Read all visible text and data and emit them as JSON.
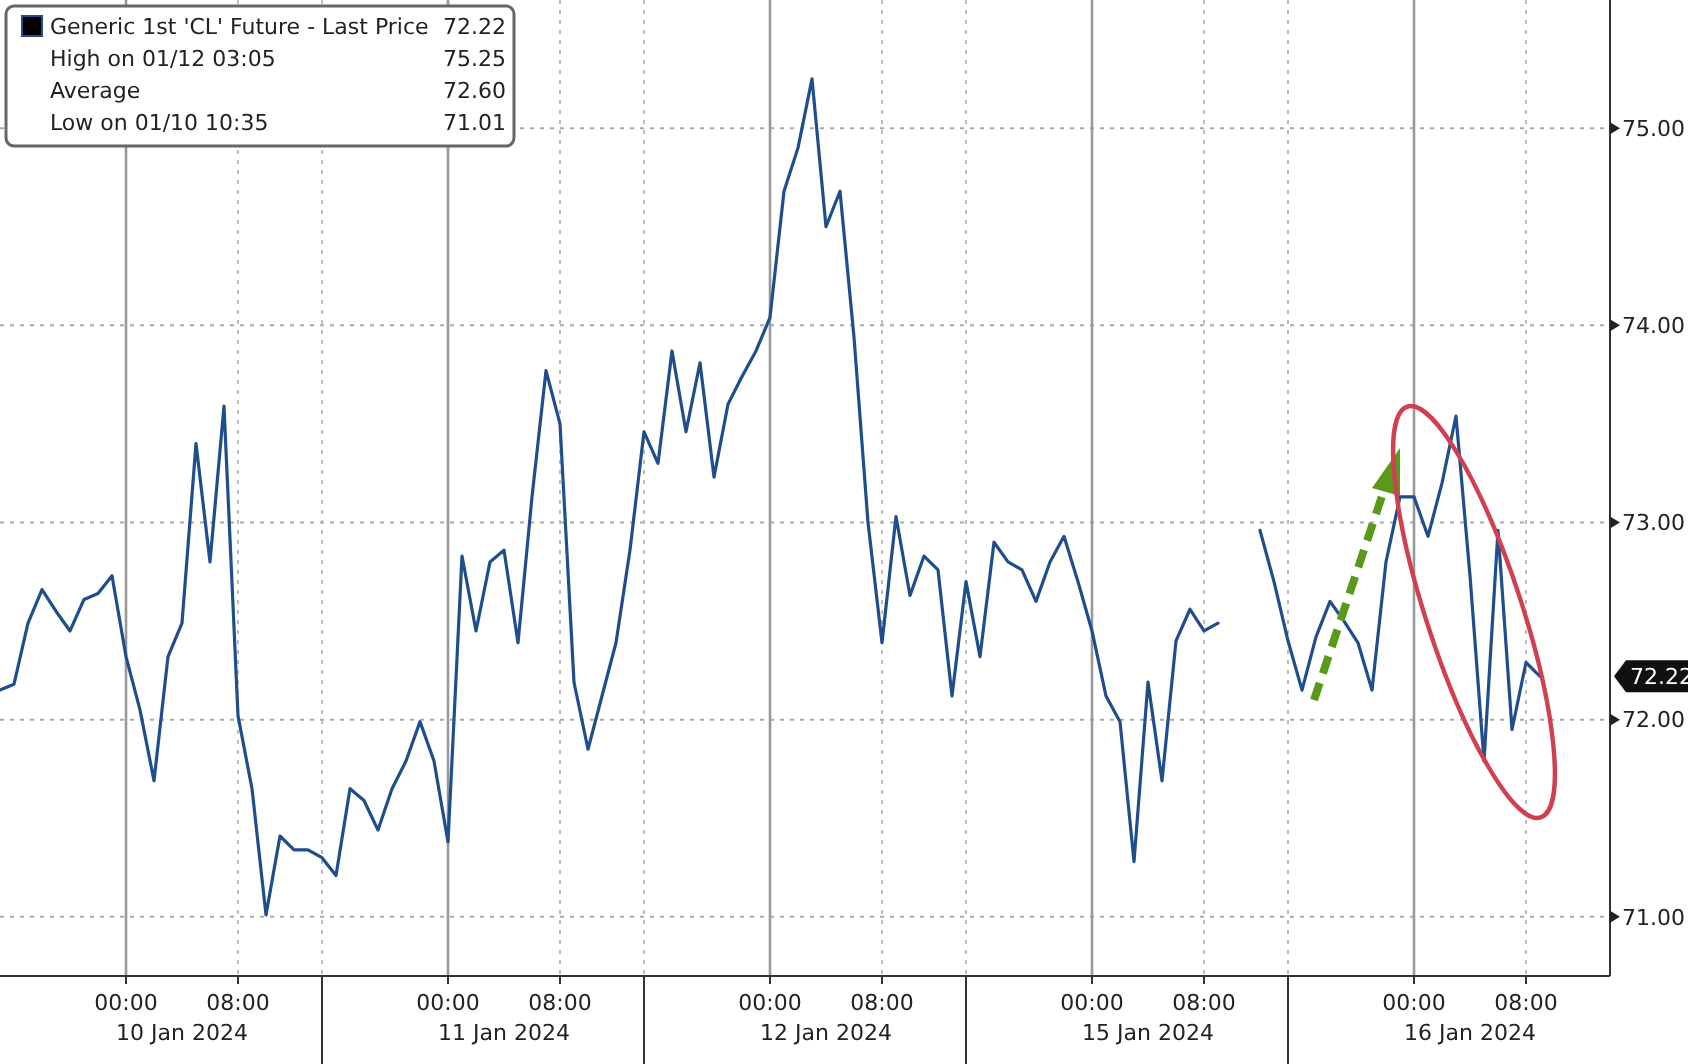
{
  "chart_data": {
    "type": "line",
    "legend": "top left",
    "grid": true,
    "categories": [
      null,
      null,
      null,
      null,
      null,
      null,
      null,
      null,
      null,
      "00:00",
      null,
      null,
      null,
      null,
      null,
      null,
      null,
      "08:00",
      null,
      null,
      null,
      null,
      null,
      null,
      null,
      null,
      null,
      null,
      null,
      null,
      null,
      null,
      "00:00",
      null,
      null,
      null,
      null,
      null,
      null,
      null,
      "08:00",
      null,
      null,
      null,
      null,
      null,
      null,
      null,
      null,
      null,
      null,
      null,
      null,
      null,
      null,
      "00:00",
      null,
      null,
      null,
      null,
      null,
      null,
      null,
      "08:00",
      null,
      null,
      null,
      null,
      null,
      null,
      null,
      null,
      null,
      null,
      null,
      null,
      null,
      null,
      "00:00",
      null,
      null,
      null,
      null,
      null,
      null,
      null,
      "08:00",
      null,
      null,
      null,
      null,
      null,
      null,
      null,
      null,
      null,
      null,
      null,
      null,
      null,
      null,
      "00:00",
      null,
      null,
      null,
      null,
      null,
      null,
      null,
      "08:00",
      null,
      null,
      null,
      null,
      null,
      null
    ],
    "series": [
      {
        "name": "Generic 1st 'CL' Future - Last Price",
        "color": "#1f4e8c",
        "values": [
          72.15,
          72.18,
          72.49,
          72.66,
          72.55,
          72.45,
          72.61,
          72.64,
          72.73,
          72.32,
          72.05,
          71.69,
          72.32,
          72.49,
          73.4,
          72.8,
          73.59,
          72.02,
          71.65,
          71.01,
          71.41,
          71.34,
          71.34,
          71.3,
          71.21,
          71.65,
          71.59,
          71.44,
          71.65,
          71.79,
          71.99,
          71.79,
          71.38,
          72.83,
          72.45,
          72.8,
          72.86,
          72.39,
          73.13,
          73.77,
          73.5,
          72.19,
          71.85,
          72.12,
          72.39,
          72.86,
          73.46,
          73.3,
          73.87,
          73.46,
          73.81,
          73.23,
          73.6,
          73.74,
          73.87,
          74.04,
          74.68,
          74.9,
          75.25,
          74.5,
          74.68,
          73.94,
          73.0,
          72.39,
          73.03,
          72.63,
          72.83,
          72.76,
          72.12,
          72.7,
          72.32,
          72.9,
          72.8,
          72.76,
          72.6,
          72.8,
          72.93,
          72.7,
          72.45,
          72.12,
          71.99,
          71.28,
          72.19,
          71.69,
          72.4,
          72.56,
          72.45,
          72.49,
          null,
          null,
          72.96,
          72.7,
          72.4,
          72.15,
          72.42,
          72.6,
          72.5,
          72.39,
          72.15,
          72.8,
          73.13,
          73.13,
          72.93,
          73.2,
          73.54,
          72.73,
          71.79,
          72.96,
          71.95,
          72.29,
          72.22,
          null,
          null,
          null,
          null,
          null
        ]
      }
    ],
    "ylim": [
      70.7,
      75.65
    ],
    "yticks": [
      {
        "value": 71,
        "label": "71.00"
      },
      {
        "value": 72,
        "label": "72.00"
      },
      {
        "value": 73,
        "label": "73.00"
      },
      {
        "value": 74,
        "label": "74.00"
      },
      {
        "value": 75,
        "label": "75.00"
      }
    ],
    "annotations": [
      "High on 01/12 03:05",
      "75.25",
      "Average",
      "72.60",
      "Low on 01/10 10:35",
      "71.01",
      "72.22",
      "10 Jan 2024",
      "11 Jan 2024",
      "12 Jan 2024",
      "15 Jan 2024",
      "16 Jan 2024"
    ]
  }
}
